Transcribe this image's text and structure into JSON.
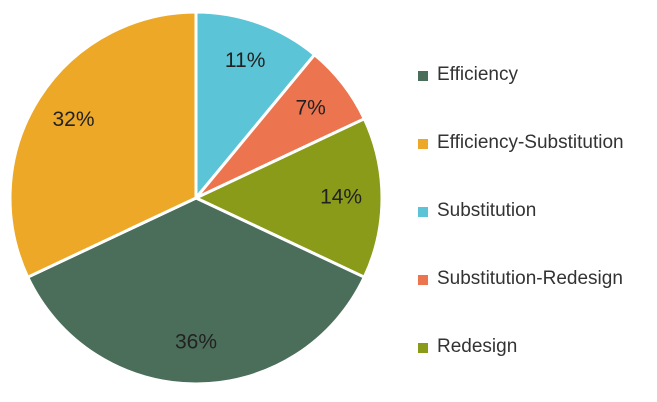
{
  "chart_data": {
    "type": "pie",
    "title": "",
    "start_angle_deg": 0,
    "direction": "clockwise",
    "slices": [
      {
        "label": "Substitution",
        "value": 11,
        "display": "11%",
        "color": "#5bc4d6"
      },
      {
        "label": "Substitution-Redesign",
        "value": 7,
        "display": "7%",
        "color": "#ec744e"
      },
      {
        "label": "Redesign",
        "value": 14,
        "display": "14%",
        "color": "#8a9b19"
      },
      {
        "label": "Efficiency",
        "value": 36,
        "display": "36%",
        "color": "#4b6e5a"
      },
      {
        "label": "Efficiency-Substitution",
        "value": 32,
        "display": "32%",
        "color": "#eda827"
      }
    ],
    "legend": {
      "position": "right",
      "order": [
        "Efficiency",
        "Efficiency-Substitution",
        "Substitution",
        "Substitution-Redesign",
        "Redesign"
      ]
    }
  }
}
